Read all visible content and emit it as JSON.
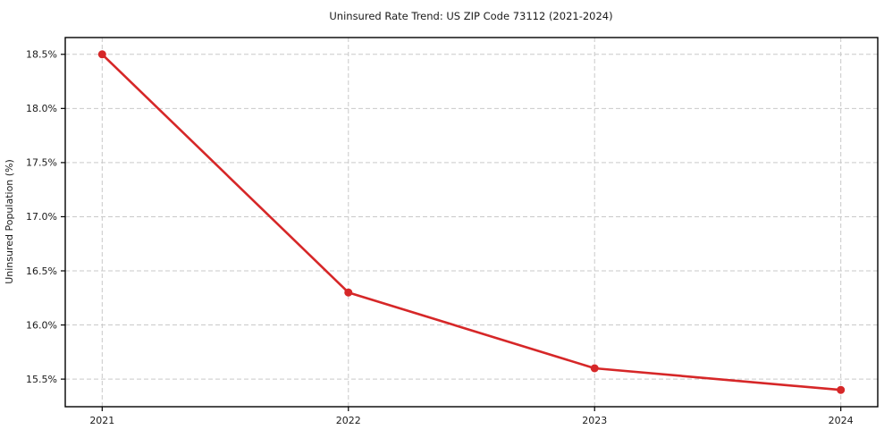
{
  "chart_data": {
    "type": "line",
    "title": "Uninsured Rate Trend: US ZIP Code 73112 (2021-2024)",
    "xlabel": "",
    "ylabel": "Uninsured Population (%)",
    "x": [
      2021,
      2022,
      2023,
      2024
    ],
    "x_tick_labels": [
      "2021",
      "2022",
      "2023",
      "2024"
    ],
    "series": [
      {
        "name": "Uninsured Rate",
        "values": [
          18.5,
          16.3,
          15.6,
          15.4
        ],
        "color": "#d62728"
      }
    ],
    "y_ticks": [
      15.5,
      16.0,
      16.5,
      17.0,
      17.5,
      18.0,
      18.5
    ],
    "y_tick_labels": [
      "15.5%",
      "16.0%",
      "16.5%",
      "17.0%",
      "17.5%",
      "18.0%",
      "18.5%"
    ],
    "ylim": [
      15.245,
      18.655
    ],
    "xlim": [
      2020.85,
      2024.15
    ],
    "grid": true,
    "grid_color": "#c9c9c9",
    "grid_dash": "5 3",
    "spine_color": "#000000",
    "tick_color": "#000000",
    "background_color": "#ffffff",
    "line_width": 2.6,
    "marker": "circle",
    "marker_radius": 4.5,
    "legend": "none"
  }
}
